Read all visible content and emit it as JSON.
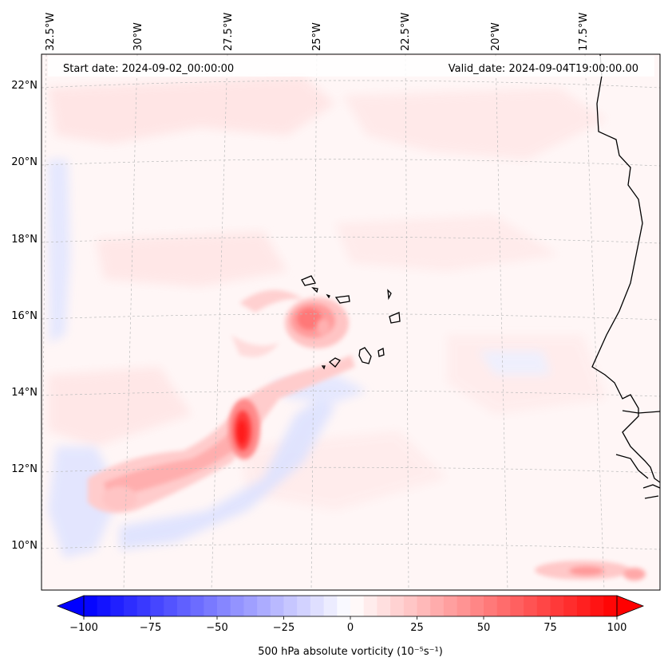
{
  "map": {
    "start_date": "Start date: 2024-09-02_00:00:00",
    "valid_date": "Valid_date: 2024-09-04T19:00:00.00",
    "longitude_labels": [
      "32.5°W",
      "30°W",
      "27.5°W",
      "25°W",
      "22.5°W",
      "20°W",
      "17.5°W"
    ],
    "latitude_labels": [
      "22°N",
      "20°N",
      "18°N",
      "16°N",
      "14°N",
      "12°N",
      "10°N"
    ],
    "extent": {
      "lon_min": -33,
      "lon_max": -15.3,
      "lat_min": 8.9,
      "lat_max": 22.8
    }
  },
  "colorbar": {
    "colormap": "bwr",
    "min": -100,
    "max": 100,
    "extend": "both",
    "tick_values": [
      -100,
      -75,
      -50,
      -25,
      0,
      25,
      50,
      75,
      100
    ],
    "tick_labels": [
      "−100",
      "−75",
      "−50",
      "−25",
      "0",
      "25",
      "50",
      "75",
      "100"
    ],
    "label": "500 hPa absolute vorticity (10⁻⁵s⁻¹)"
  },
  "colors": {
    "negative": "#0000ff",
    "positive": "#ff0000",
    "neutral": "#ffffff",
    "gridline": "#bbbbbb",
    "coastline": "#000000"
  }
}
